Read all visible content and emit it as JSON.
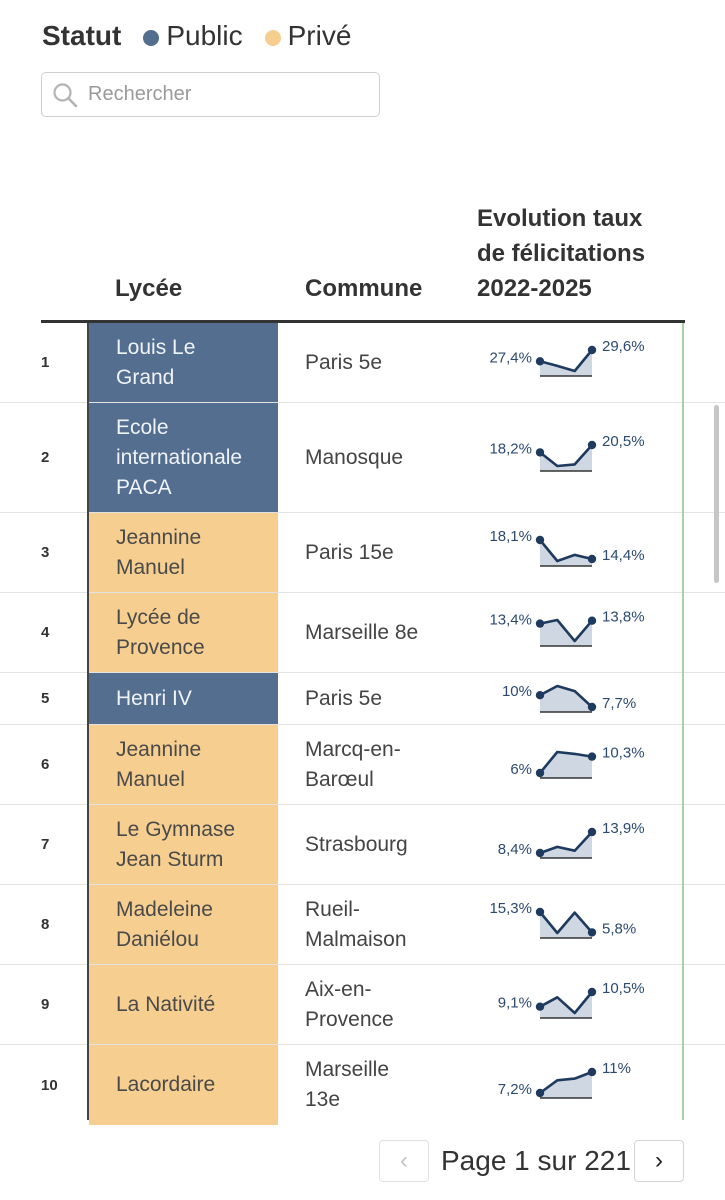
{
  "legend": {
    "title": "Statut",
    "items": [
      {
        "label": "Public",
        "color": "#536e8f"
      },
      {
        "label": "Privé",
        "color": "#f6ce8f"
      }
    ]
  },
  "search": {
    "placeholder": "Rechercher",
    "value": "",
    "icon": "search-icon"
  },
  "columns": {
    "lycee": "Lycée",
    "commune": "Commune",
    "evolution_line1": "Evolution taux",
    "evolution_line2": "de félicitations",
    "evolution_line3": "2022-2025"
  },
  "rows": [
    {
      "rank": "1",
      "lycee": [
        "Louis Le",
        "Grand"
      ],
      "statut": "public",
      "commune": [
        "Paris 5e"
      ],
      "start_label": "27,4%",
      "end_label": "29,6%",
      "trend": [
        27.4,
        26.5,
        25.5,
        29.6
      ]
    },
    {
      "rank": "2",
      "lycee": [
        "Ecole",
        "internationale",
        "PACA"
      ],
      "statut": "public",
      "commune": [
        "Manosque"
      ],
      "start_label": "18,2%",
      "end_label": "20,5%",
      "trend": [
        18.2,
        14.0,
        14.5,
        20.5
      ]
    },
    {
      "rank": "3",
      "lycee": [
        "Jeannine",
        "Manuel"
      ],
      "statut": "prive",
      "commune": [
        "Paris 15e"
      ],
      "start_label": "18,1%",
      "end_label": "14,4%",
      "trend": [
        18.1,
        14.0,
        15.2,
        14.4
      ]
    },
    {
      "rank": "4",
      "lycee": [
        "Lycée de",
        "Provence"
      ],
      "statut": "prive",
      "commune": [
        "Marseille 8e"
      ],
      "start_label": "13,4%",
      "end_label": "13,8%",
      "trend": [
        13.4,
        13.9,
        11.0,
        13.8
      ]
    },
    {
      "rank": "5",
      "lycee": [
        "Henri IV"
      ],
      "statut": "public",
      "commune": [
        "Paris 5e"
      ],
      "start_label": "10%",
      "end_label": "7,7%",
      "trend": [
        10.0,
        11.8,
        10.8,
        7.7
      ]
    },
    {
      "rank": "6",
      "lycee": [
        "Jeannine",
        "Manuel"
      ],
      "statut": "prive",
      "commune": [
        "Marcq-en-",
        "Barœul"
      ],
      "start_label": "6%",
      "end_label": "10,3%",
      "trend": [
        6.0,
        11.5,
        11.0,
        10.3
      ]
    },
    {
      "rank": "7",
      "lycee": [
        "Le Gymnase",
        "Jean Sturm"
      ],
      "statut": "prive",
      "commune": [
        "Strasbourg"
      ],
      "start_label": "8,4%",
      "end_label": "13,9%",
      "trend": [
        8.4,
        10.0,
        9.0,
        13.9
      ]
    },
    {
      "rank": "8",
      "lycee": [
        "Madeleine",
        "Daniélou"
      ],
      "statut": "prive",
      "commune": [
        "Rueil-",
        "Malmaison"
      ],
      "start_label": "15,3%",
      "end_label": "5,8%",
      "trend": [
        15.3,
        5.5,
        15.0,
        5.8
      ]
    },
    {
      "rank": "9",
      "lycee": [
        "La Nativité"
      ],
      "statut": "prive",
      "commune": [
        "Aix-en-",
        "Provence"
      ],
      "start_label": "9,1%",
      "end_label": "10,5%",
      "trend": [
        9.1,
        10.0,
        8.5,
        10.5
      ]
    },
    {
      "rank": "10",
      "lycee": [
        "Lacordaire"
      ],
      "statut": "prive",
      "commune": [
        "Marseille",
        "13e"
      ],
      "start_label": "7,2%",
      "end_label": "11%",
      "trend": [
        7.2,
        9.5,
        9.8,
        11.0
      ]
    }
  ],
  "colors": {
    "public": "#536e8f",
    "prive": "#f6ce8f",
    "line": "#1e3a5f",
    "area": "#cfd8e2"
  },
  "pagination": {
    "text": "Page 1 sur 221",
    "prev": "‹",
    "next": "›"
  }
}
